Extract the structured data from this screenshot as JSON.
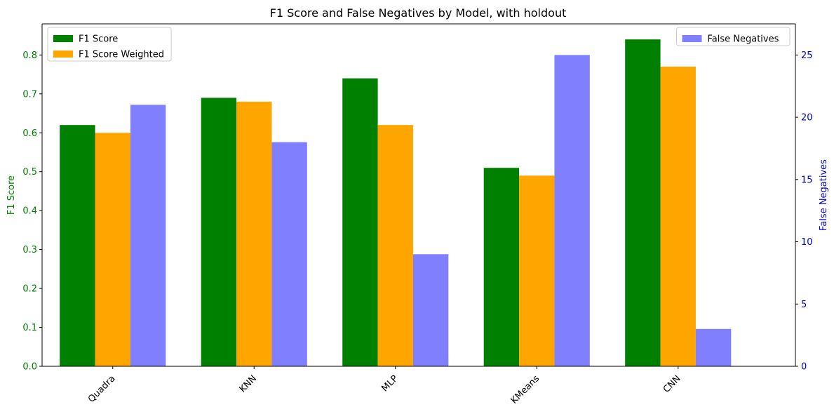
{
  "chart_data": {
    "type": "bar",
    "title": "F1 Score and False Negatives by Model, with holdout",
    "categories": [
      "Quadra",
      "KNN",
      "MLP",
      "KMeans",
      "CNN"
    ],
    "left_axis": {
      "label": "F1 Score",
      "color": "#008000",
      "ylim": [
        0,
        0.88
      ],
      "ticks": [
        0.0,
        0.1,
        0.2,
        0.3,
        0.4,
        0.5,
        0.6,
        0.7,
        0.8
      ],
      "tick_labels": [
        "0.0",
        "0.1",
        "0.2",
        "0.3",
        "0.4",
        "0.5",
        "0.6",
        "0.7",
        "0.8"
      ]
    },
    "right_axis": {
      "label": "False Negatives",
      "color": "#0000cc",
      "ylim": [
        0,
        27.5
      ],
      "ticks": [
        0,
        5,
        10,
        15,
        20,
        25
      ],
      "tick_labels": [
        "0",
        "5",
        "10",
        "15",
        "20",
        "25"
      ]
    },
    "series": [
      {
        "name": "F1 Score",
        "axis": "left",
        "color": "#008000",
        "values": [
          0.62,
          0.69,
          0.74,
          0.51,
          0.84
        ]
      },
      {
        "name": "F1 Score Weighted",
        "axis": "left",
        "color": "#ffa500",
        "values": [
          0.6,
          0.68,
          0.62,
          0.49,
          0.77
        ]
      },
      {
        "name": "False Negatives",
        "axis": "right",
        "color": "#8080ff",
        "values": [
          21,
          18,
          9,
          25,
          3
        ]
      }
    ],
    "legend_left": {
      "placement": "upper-left",
      "entries": [
        "F1 Score",
        "F1 Score Weighted"
      ]
    },
    "legend_right": {
      "placement": "upper-right",
      "entries": [
        "False Negatives"
      ]
    },
    "grid": false
  }
}
